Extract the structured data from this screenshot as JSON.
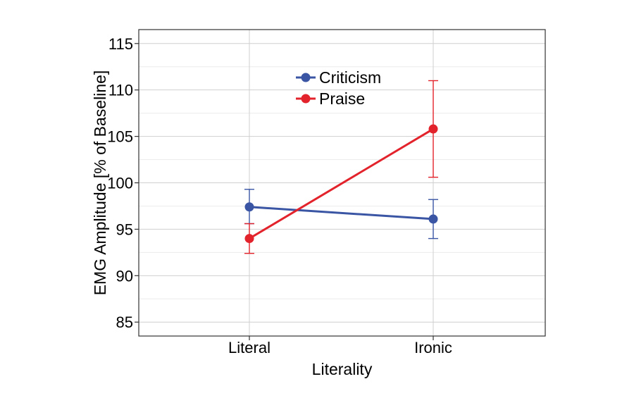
{
  "chart_data": {
    "type": "line",
    "xlabel": "Literality",
    "ylabel": "EMG Amplitude [% of Baseline]",
    "categories": [
      "Literal",
      "Ironic"
    ],
    "ylim": [
      83.5,
      116.5
    ],
    "yticks": [
      "85",
      "90",
      "95",
      "100",
      "105",
      "110",
      "115"
    ],
    "ytick_values": [
      85,
      90,
      95,
      100,
      105,
      110,
      115
    ],
    "grid": true,
    "legend_position": "top-center",
    "series": [
      {
        "name": "Criticism",
        "color": "#3a55a4",
        "values": [
          97.4,
          96.1
        ],
        "error_low": [
          95.6,
          94.0
        ],
        "error_high": [
          99.3,
          98.2
        ]
      },
      {
        "name": "Praise",
        "color": "#e3232c",
        "values": [
          94.0,
          105.8
        ],
        "error_low": [
          92.4,
          100.6
        ],
        "error_high": [
          95.6,
          111.0
        ]
      }
    ]
  }
}
